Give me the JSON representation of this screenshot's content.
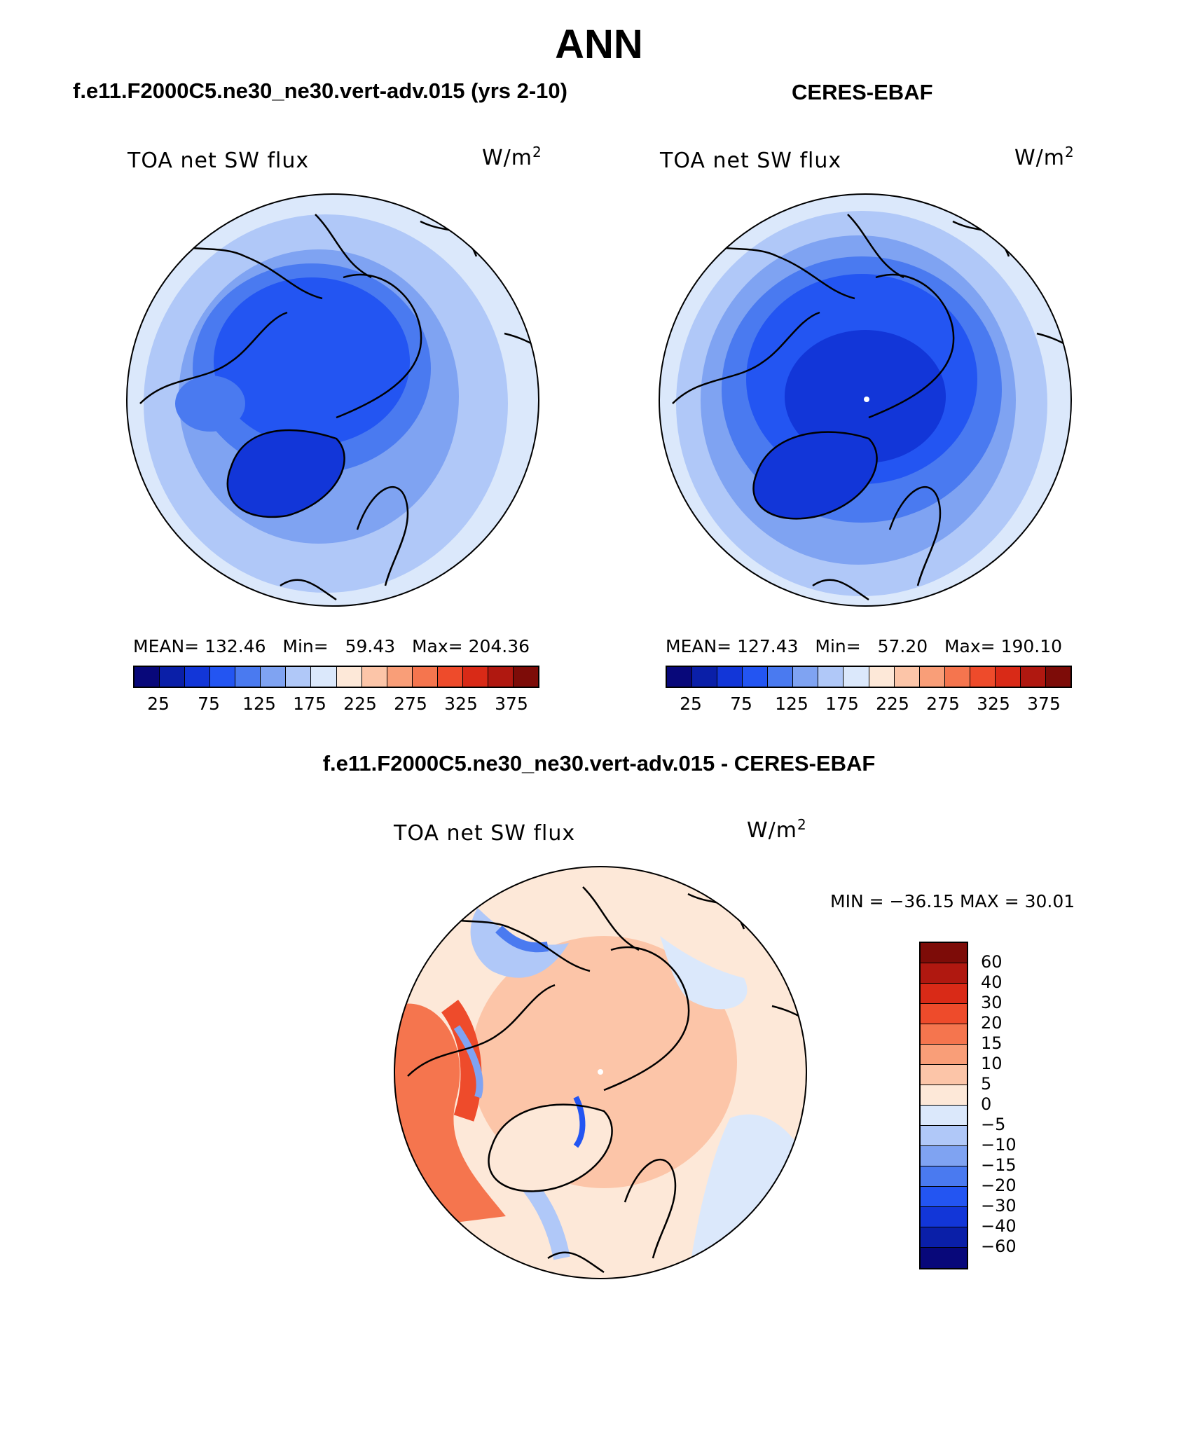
{
  "main_title": "ANN",
  "panels": [
    {
      "title": "f.e11.F2000C5.ne30_ne30.vert-adv.015 (yrs 2-10)",
      "variable": "TOA net SW flux",
      "units_base": "W/m",
      "units_exp": "2",
      "stats": {
        "mean_label": "MEAN=",
        "mean": "132.46",
        "min_label": "Min=",
        "min": "59.43",
        "max_label": "Max=",
        "max": "204.36"
      },
      "colorbar_ticks": [
        "25",
        "75",
        "125",
        "175",
        "225",
        "275",
        "325",
        "375"
      ]
    },
    {
      "title": "CERES-EBAF",
      "variable": "TOA net SW flux",
      "units_base": "W/m",
      "units_exp": "2",
      "stats": {
        "mean_label": "MEAN=",
        "mean": "127.43",
        "min_label": "Min=",
        "min": "57.20",
        "max_label": "Max=",
        "max": "190.10"
      },
      "colorbar_ticks": [
        "25",
        "75",
        "125",
        "175",
        "225",
        "275",
        "325",
        "375"
      ]
    }
  ],
  "diff": {
    "title": "f.e11.F2000C5.ne30_ne30.vert-adv.015 - CERES-EBAF",
    "variable": "TOA net SW flux",
    "units_base": "W/m",
    "units_exp": "2",
    "minmax": "MIN = −36.15 MAX =   30.01",
    "colorbar_ticks": [
      "60",
      "40",
      "30",
      "20",
      "15",
      "10",
      "5",
      "0",
      "−5",
      "−10",
      "−15",
      "−20",
      "−30",
      "−40",
      "−60"
    ]
  },
  "colors": {
    "abs_scale": [
      "#08087a",
      "#0a1fa8",
      "#1236d8",
      "#2355f2",
      "#4a7af0",
      "#7fa3f2",
      "#b0c8f8",
      "#dbe8fb",
      "#fde8d8",
      "#fcc5a8",
      "#f99e78",
      "#f5754e",
      "#ee4b2b",
      "#d92a17",
      "#b01810",
      "#7d0c08"
    ],
    "diff_scale": [
      "#7d0c08",
      "#b01810",
      "#d92a17",
      "#ee4b2b",
      "#f5754e",
      "#f99e78",
      "#fcc5a8",
      "#fde8d8",
      "#dbe8fb",
      "#b0c8f8",
      "#7fa3f2",
      "#4a7af0",
      "#2355f2",
      "#1236d8",
      "#0a1fa8",
      "#08087a"
    ]
  }
}
